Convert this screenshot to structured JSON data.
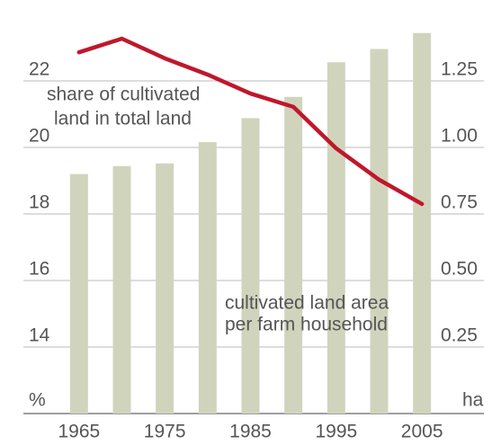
{
  "chart_data": {
    "type": "bar",
    "categories": [
      "1965",
      null,
      "1975",
      null,
      "1985",
      null,
      "1995",
      null,
      "2005"
    ],
    "series": [
      {
        "type": "bar",
        "axis": "y2",
        "color": "#d1d4bd",
        "values": [
          0.9,
          0.93,
          0.94,
          1.02,
          1.11,
          1.19,
          1.32,
          1.37,
          1.43
        ]
      },
      {
        "type": "line",
        "axis": "y",
        "color": "#c0172b",
        "values": [
          22.86,
          23.27,
          22.68,
          22.19,
          21.62,
          21.22,
          19.97,
          19.03,
          18.3
        ]
      }
    ],
    "ylim": [
      12,
      24
    ],
    "yticks": [
      14,
      16,
      18,
      20,
      22
    ],
    "y2lim": [
      0,
      1.5
    ],
    "y2ticks": [
      0.25,
      {
        "value": 0.5,
        "label": "0.50"
      },
      0.75,
      {
        "value": 1,
        "label": "1.00"
      },
      1.25
    ],
    "y_unit": "%",
    "y2_unit": "ha",
    "annotations": [
      "share of cultivated",
      "land in total land",
      "cultivated land area",
      "per farm household"
    ],
    "grid": true
  }
}
